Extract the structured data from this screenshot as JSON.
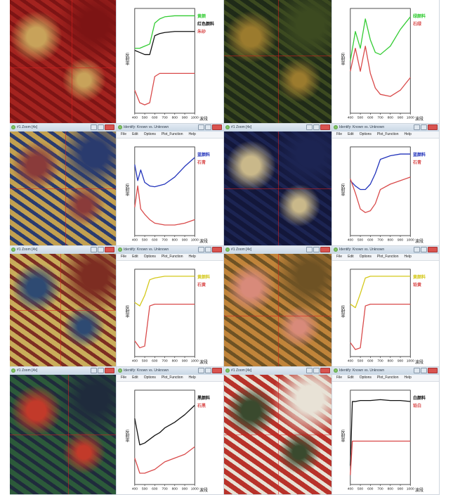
{
  "windows": {
    "zoom_title": "#1 Zoom [4x]",
    "identify_title": "Identify: Known vs. Unknown",
    "menu": [
      "File",
      "Edit",
      "Options",
      "Plot_Function",
      "Help"
    ]
  },
  "axis": {
    "ylabel": "反射率",
    "xlabel": "波段",
    "xticks": [
      "400",
      "500",
      "600",
      "700",
      "800",
      "900",
      "1000"
    ]
  },
  "panels": [
    {
      "zoom_colors": [
        "#a3231f",
        "#7d1414",
        "#c8a25a"
      ],
      "cross": [
        0.58,
        0.55
      ],
      "legend": [
        {
          "label": "黄颜",
          "color": "#33cc33"
        },
        {
          "label": "红色颜料",
          "color": "#111111"
        },
        {
          "label": "朱砂",
          "color": "#d94a4a"
        }
      ],
      "chart_data": {
        "type": "line",
        "x": [
          400,
          450,
          500,
          550,
          600,
          650,
          700,
          800,
          900,
          1000
        ],
        "series": [
          {
            "color": "#33cc33",
            "values": [
              0.62,
              0.62,
              0.64,
              0.66,
              0.86,
              0.9,
              0.92,
              0.93,
              0.93,
              0.93
            ]
          },
          {
            "color": "#111111",
            "values": [
              0.6,
              0.58,
              0.56,
              0.56,
              0.74,
              0.76,
              0.77,
              0.78,
              0.78,
              0.78
            ]
          },
          {
            "color": "#d94a4a",
            "values": [
              0.22,
              0.1,
              0.08,
              0.1,
              0.35,
              0.38,
              0.38,
              0.38,
              0.38,
              0.38
            ]
          }
        ],
        "ylim": [
          0,
          1
        ]
      }
    },
    {
      "zoom_colors": [
        "#1f2a18",
        "#3c4a20",
        "#9b7b2e"
      ],
      "cross": [
        0.5,
        0.45
      ],
      "legend": [
        {
          "label": "绿颜料",
          "color": "#33cc33"
        },
        {
          "label": "石绿",
          "color": "#d94a4a"
        }
      ],
      "chart_data": {
        "type": "line",
        "x": [
          400,
          450,
          500,
          550,
          600,
          650,
          700,
          800,
          900,
          1000
        ],
        "series": [
          {
            "color": "#33cc33",
            "values": [
              0.5,
              0.78,
              0.62,
              0.9,
              0.7,
              0.58,
              0.56,
              0.64,
              0.8,
              0.92
            ]
          },
          {
            "color": "#d94a4a",
            "values": [
              0.4,
              0.62,
              0.4,
              0.64,
              0.38,
              0.24,
              0.18,
              0.16,
              0.22,
              0.34
            ]
          }
        ],
        "ylim": [
          0,
          1
        ]
      }
    },
    {
      "zoom_colors": [
        "#c2a050",
        "#2a3b6e",
        "#8a3b3a"
      ],
      "cross": [
        0.52,
        0.5
      ],
      "legend": [
        {
          "label": "蓝颜料",
          "color": "#2233bb"
        },
        {
          "label": "石青",
          "color": "#d94a4a"
        }
      ],
      "chart_data": {
        "type": "line",
        "x": [
          400,
          430,
          460,
          500,
          550,
          600,
          700,
          800,
          900,
          1000
        ],
        "series": [
          {
            "color": "#2233bb",
            "values": [
              0.8,
              0.62,
              0.74,
              0.6,
              0.56,
              0.55,
              0.58,
              0.66,
              0.78,
              0.88
            ]
          },
          {
            "color": "#d94a4a",
            "values": [
              0.32,
              0.56,
              0.3,
              0.24,
              0.18,
              0.14,
              0.12,
              0.12,
              0.14,
              0.18
            ]
          }
        ],
        "ylim": [
          0,
          1
        ]
      }
    },
    {
      "zoom_colors": [
        "#13173a",
        "#1c2452",
        "#c9b88a"
      ],
      "cross": [
        0.5,
        0.5
      ],
      "legend": [
        {
          "label": "蓝颜料",
          "color": "#2233bb"
        },
        {
          "label": "石青",
          "color": "#d94a4a"
        }
      ],
      "chart_data": {
        "type": "line",
        "x": [
          400,
          450,
          500,
          550,
          600,
          650,
          700,
          800,
          900,
          1000
        ],
        "series": [
          {
            "color": "#2233bb",
            "values": [
              0.62,
              0.56,
              0.52,
              0.52,
              0.58,
              0.7,
              0.86,
              0.9,
              0.92,
              0.92
            ]
          },
          {
            "color": "#d94a4a",
            "values": [
              0.64,
              0.48,
              0.3,
              0.26,
              0.28,
              0.36,
              0.52,
              0.58,
              0.62,
              0.66
            ]
          }
        ],
        "ylim": [
          0,
          1
        ]
      }
    },
    {
      "zoom_colors": [
        "#c9ad5a",
        "#7d2d22",
        "#2e4a72"
      ],
      "cross": [
        0.48,
        0.5
      ],
      "legend": [
        {
          "label": "黄颜料",
          "color": "#d4c81a"
        },
        {
          "label": "石黄",
          "color": "#d94a4a"
        }
      ],
      "chart_data": {
        "type": "line",
        "x": [
          400,
          450,
          500,
          550,
          600,
          650,
          700,
          800,
          900,
          1000
        ],
        "series": [
          {
            "color": "#d4c81a",
            "values": [
              0.62,
              0.58,
              0.7,
              0.88,
              0.9,
              0.91,
              0.92,
              0.92,
              0.92,
              0.92
            ]
          },
          {
            "color": "#d94a4a",
            "values": [
              0.18,
              0.1,
              0.12,
              0.58,
              0.6,
              0.6,
              0.6,
              0.6,
              0.6,
              0.6
            ]
          }
        ],
        "ylim": [
          0,
          1
        ]
      }
    },
    {
      "zoom_colors": [
        "#c0843a",
        "#6e5224",
        "#d88a7a"
      ],
      "cross": [
        0.5,
        0.55
      ],
      "legend": [
        {
          "label": "黄颜料",
          "color": "#d4c81a"
        },
        {
          "label": "铅黄",
          "color": "#d94a4a"
        }
      ],
      "chart_data": {
        "type": "line",
        "x": [
          400,
          450,
          500,
          550,
          600,
          650,
          700,
          800,
          900,
          1000
        ],
        "series": [
          {
            "color": "#d4c81a",
            "values": [
              0.6,
              0.56,
              0.72,
              0.9,
              0.92,
              0.92,
              0.92,
              0.92,
              0.92,
              0.92
            ]
          },
          {
            "color": "#d94a4a",
            "values": [
              0.16,
              0.08,
              0.1,
              0.58,
              0.6,
              0.6,
              0.6,
              0.6,
              0.6,
              0.6
            ]
          }
        ],
        "ylim": [
          0,
          1
        ]
      }
    },
    {
      "zoom_colors": [
        "#2c5a3a",
        "#1f2b3c",
        "#c23a2a"
      ],
      "cross": [
        0.55,
        0.5
      ],
      "legend": [
        {
          "label": "黑颜料",
          "color": "#111111"
        },
        {
          "label": "石黑",
          "color": "#d94a4a"
        }
      ],
      "chart_data": {
        "type": "line",
        "x": [
          400,
          450,
          500,
          550,
          600,
          650,
          700,
          800,
          900,
          1000
        ],
        "series": [
          {
            "color": "#111111",
            "values": [
              0.7,
              0.42,
              0.44,
              0.48,
              0.52,
              0.55,
              0.6,
              0.66,
              0.74,
              0.84
            ]
          },
          {
            "color": "#d94a4a",
            "values": [
              0.28,
              0.12,
              0.12,
              0.14,
              0.16,
              0.2,
              0.24,
              0.28,
              0.32,
              0.4
            ]
          }
        ],
        "ylim": [
          0,
          1
        ]
      }
    },
    {
      "zoom_colors": [
        "#b8322a",
        "#e8e2d6",
        "#3a4a2e"
      ],
      "cross": [
        0.5,
        0.5
      ],
      "legend": [
        {
          "label": "白颜料",
          "color": "#111111"
        },
        {
          "label": "铅白",
          "color": "#d94a4a"
        }
      ],
      "chart_data": {
        "type": "line",
        "x": [
          400,
          420,
          450,
          500,
          600,
          700,
          800,
          900,
          1000
        ],
        "series": [
          {
            "color": "#111111",
            "values": [
              0.2,
              0.88,
              0.88,
              0.89,
              0.89,
              0.9,
              0.89,
              0.89,
              0.88
            ]
          },
          {
            "color": "#d94a4a",
            "values": [
              0.1,
              0.46,
              0.46,
              0.46,
              0.46,
              0.46,
              0.46,
              0.46,
              0.46
            ]
          }
        ],
        "ylim": [
          0,
          1
        ]
      }
    }
  ]
}
